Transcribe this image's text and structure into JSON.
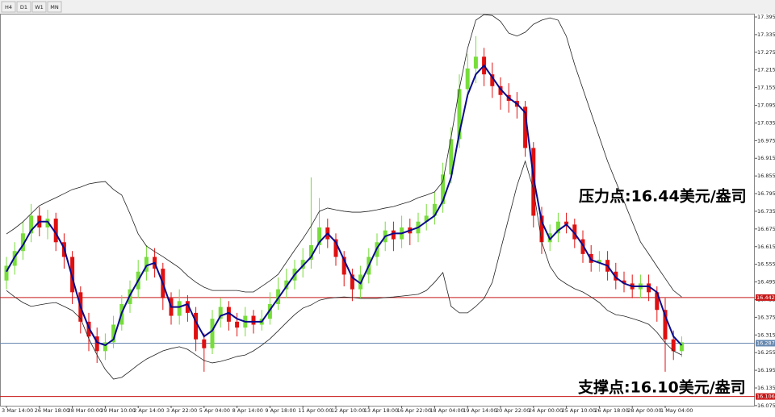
{
  "toolbar": [
    "H4",
    "D1",
    "W1",
    "MN"
  ],
  "chart_data": {
    "type": "candlestick",
    "categories": [
      "3 Mar 14:00",
      null,
      null,
      null,
      "26 Mar 18:00",
      null,
      null,
      null,
      "28 Mar 00:00",
      null,
      null,
      null,
      "29 Mar 10:00",
      null,
      null,
      null,
      "2 Apr 14:00",
      null,
      null,
      null,
      "3 Apr 22:00",
      null,
      null,
      null,
      "5 Apr 04:00",
      null,
      null,
      null,
      "8 Apr 14:00",
      null,
      null,
      null,
      "9 Apr 18:00",
      null,
      null,
      null,
      "11 Apr 00:00",
      null,
      null,
      null,
      "12 Apr 10:00",
      null,
      null,
      null,
      "13 Apr 18:00",
      null,
      null,
      null,
      "16 Apr 22:00",
      null,
      null,
      null,
      "18 Apr 04:00",
      null,
      null,
      null,
      "19 Apr 14:00",
      null,
      null,
      null,
      "20 Apr 22:00",
      null,
      null,
      null,
      "24 Apr 00:00",
      null,
      null,
      null,
      "25 Apr 10:00",
      null,
      null,
      null,
      "26 Apr 18:00",
      null,
      null,
      null,
      "28 Apr 00:00",
      null,
      null,
      null,
      "1 May 04:00",
      null,
      null
    ],
    "open": [
      16.5,
      16.55,
      16.6,
      16.66,
      16.72,
      16.68,
      16.71,
      16.63,
      16.58,
      16.46,
      16.36,
      16.31,
      16.26,
      16.29,
      16.35,
      16.42,
      16.47,
      16.53,
      16.58,
      16.54,
      16.44,
      16.38,
      16.43,
      16.39,
      16.3,
      16.27,
      16.37,
      16.41,
      16.36,
      16.34,
      16.38,
      16.35,
      16.37,
      16.42,
      16.47,
      16.5,
      16.54,
      16.57,
      16.62,
      16.68,
      16.64,
      16.58,
      16.52,
      16.47,
      16.52,
      16.58,
      16.63,
      16.67,
      16.64,
      16.68,
      16.66,
      16.7,
      16.72,
      16.76,
      16.86,
      16.98,
      17.15,
      17.22,
      17.26,
      17.2,
      17.16,
      17.13,
      17.11,
      17.09,
      16.95,
      16.72,
      16.63,
      16.66,
      16.7,
      16.69,
      16.64,
      16.59,
      16.56,
      16.57,
      16.53,
      16.5,
      16.49,
      16.47,
      16.49,
      16.46,
      16.4,
      16.3,
      16.26
    ],
    "high": [
      16.58,
      16.63,
      16.7,
      16.76,
      16.75,
      16.74,
      16.73,
      16.66,
      16.6,
      16.48,
      16.39,
      16.34,
      16.32,
      16.38,
      16.45,
      16.5,
      16.57,
      16.62,
      16.61,
      16.56,
      16.46,
      16.47,
      16.45,
      16.41,
      16.32,
      16.4,
      16.44,
      16.43,
      16.39,
      16.41,
      16.4,
      16.4,
      16.46,
      16.51,
      16.54,
      16.57,
      16.61,
      16.85,
      16.78,
      16.71,
      16.66,
      16.6,
      16.54,
      16.55,
      16.61,
      16.66,
      16.7,
      16.7,
      16.72,
      16.71,
      16.73,
      16.76,
      16.8,
      16.9,
      17.02,
      17.2,
      17.27,
      17.33,
      17.29,
      17.24,
      17.19,
      17.17,
      17.14,
      17.11,
      16.97,
      16.75,
      16.69,
      16.73,
      16.73,
      16.71,
      16.67,
      16.62,
      16.6,
      16.6,
      16.56,
      16.53,
      16.52,
      16.52,
      16.52,
      16.48,
      16.44,
      16.33,
      16.31
    ],
    "low": [
      16.47,
      16.52,
      16.57,
      16.63,
      16.65,
      16.64,
      16.6,
      16.54,
      16.42,
      16.32,
      16.26,
      16.22,
      16.23,
      16.27,
      16.33,
      16.39,
      16.44,
      16.5,
      16.51,
      16.4,
      16.35,
      16.35,
      16.36,
      16.26,
      16.19,
      16.25,
      16.34,
      16.33,
      16.31,
      16.31,
      16.32,
      16.33,
      16.35,
      16.4,
      16.44,
      16.47,
      16.51,
      16.54,
      16.59,
      16.61,
      16.55,
      16.48,
      16.43,
      16.44,
      16.49,
      16.55,
      16.6,
      16.6,
      16.61,
      16.62,
      16.63,
      16.67,
      16.69,
      16.73,
      16.83,
      16.95,
      17.12,
      17.17,
      17.16,
      17.12,
      17.08,
      17.07,
      17.05,
      16.92,
      16.68,
      16.59,
      16.6,
      16.63,
      16.66,
      16.61,
      16.56,
      16.53,
      16.53,
      16.5,
      16.47,
      16.46,
      16.44,
      16.44,
      16.43,
      16.36,
      16.19,
      16.23,
      16.24
    ],
    "close": [
      16.55,
      16.6,
      16.66,
      16.72,
      16.68,
      16.71,
      16.63,
      16.58,
      16.46,
      16.36,
      16.31,
      16.26,
      16.29,
      16.35,
      16.42,
      16.47,
      16.53,
      16.58,
      16.54,
      16.44,
      16.38,
      16.43,
      16.39,
      16.3,
      16.27,
      16.37,
      16.41,
      16.36,
      16.34,
      16.38,
      16.35,
      16.37,
      16.42,
      16.47,
      16.5,
      16.54,
      16.57,
      16.62,
      16.68,
      16.64,
      16.58,
      16.52,
      16.47,
      16.52,
      16.58,
      16.63,
      16.67,
      16.64,
      16.68,
      16.66,
      16.7,
      16.72,
      16.76,
      16.86,
      16.98,
      17.15,
      17.22,
      17.26,
      17.2,
      17.16,
      17.13,
      17.11,
      17.09,
      16.95,
      16.72,
      16.63,
      16.66,
      16.7,
      16.69,
      16.64,
      16.59,
      16.56,
      16.57,
      16.53,
      16.5,
      16.49,
      16.47,
      16.49,
      16.46,
      16.4,
      16.3,
      16.26,
      16.29
    ],
    "up_color": "#77dd3a",
    "down_color": "#e01010",
    "series": [
      {
        "color": "#222222",
        "values": [
          16.658,
          16.677,
          16.699,
          16.727,
          16.754,
          16.768,
          16.781,
          16.795,
          16.809,
          16.817,
          16.828,
          16.833,
          16.836,
          16.809,
          16.79,
          16.727,
          16.658,
          16.617,
          16.598,
          16.581,
          16.562,
          16.543,
          16.516,
          16.494,
          16.477,
          16.466,
          16.466,
          16.466,
          16.466,
          16.461,
          16.461,
          16.48,
          16.499,
          16.521,
          16.562,
          16.603,
          16.642,
          16.685,
          16.735,
          16.746,
          16.74,
          16.735,
          16.732,
          16.732,
          16.735,
          16.74,
          16.746,
          16.751,
          16.76,
          16.768,
          16.781,
          16.79,
          16.801,
          16.836,
          16.987,
          17.151,
          17.288,
          17.384,
          17.403,
          17.4,
          17.38,
          17.34,
          17.33,
          17.343,
          17.37,
          17.384,
          17.392,
          17.384,
          17.329,
          17.233,
          17.151,
          17.069,
          16.987,
          16.905,
          16.836,
          16.768,
          16.699,
          16.631,
          16.59,
          16.548,
          16.507,
          16.466,
          16.444
        ]
      },
      {
        "color": "#222222",
        "values": [
          16.466,
          16.444,
          16.425,
          16.412,
          16.417,
          16.422,
          16.425,
          16.412,
          16.398,
          16.371,
          16.302,
          16.247,
          16.198,
          16.165,
          16.171,
          16.192,
          16.214,
          16.233,
          16.247,
          16.261,
          16.269,
          16.275,
          16.266,
          16.247,
          16.228,
          16.22,
          16.225,
          16.233,
          16.242,
          16.247,
          16.261,
          16.28,
          16.302,
          16.329,
          16.357,
          16.384,
          16.406,
          16.417,
          16.433,
          16.439,
          16.442,
          16.444,
          16.442,
          16.439,
          16.439,
          16.439,
          16.442,
          16.444,
          16.447,
          16.45,
          16.453,
          16.466,
          16.494,
          16.527,
          16.412,
          16.39,
          16.39,
          16.412,
          16.439,
          16.494,
          16.603,
          16.713,
          16.822,
          16.905,
          16.809,
          16.631,
          16.548,
          16.507,
          16.488,
          16.472,
          16.461,
          16.444,
          16.425,
          16.398,
          16.384,
          16.379,
          16.371,
          16.362,
          16.351,
          16.324,
          16.288,
          16.261,
          16.247
        ]
      },
      {
        "color": "#0a0a8c",
        "values": [
          16.53,
          16.58,
          16.62,
          16.67,
          16.7,
          16.7,
          16.66,
          16.61,
          16.51,
          16.41,
          16.34,
          16.29,
          16.28,
          16.3,
          16.39,
          16.45,
          16.5,
          16.55,
          16.56,
          16.49,
          16.41,
          16.41,
          16.42,
          16.36,
          16.31,
          16.33,
          16.38,
          16.39,
          16.37,
          16.36,
          16.36,
          16.36,
          16.4,
          16.44,
          16.48,
          16.52,
          16.55,
          16.58,
          16.63,
          16.66,
          16.63,
          16.57,
          16.51,
          16.49,
          16.55,
          16.61,
          16.65,
          16.66,
          16.66,
          16.67,
          16.68,
          16.7,
          16.72,
          16.77,
          16.85,
          17.0,
          17.13,
          17.2,
          17.23,
          17.19,
          17.15,
          17.12,
          17.1,
          17.07,
          16.85,
          16.7,
          16.64,
          16.67,
          16.69,
          16.66,
          16.62,
          16.57,
          16.56,
          16.55,
          16.51,
          16.49,
          16.48,
          16.48,
          16.48,
          16.46,
          16.38,
          16.31,
          16.28
        ]
      }
    ],
    "hlines": [
      16.442,
      16.287,
      16.106
    ],
    "hline_colors": [
      "#c81818",
      "#6688b0",
      "#c81818"
    ],
    "annotations": [
      "压力点:16.44美元/盎司",
      "支撑点:16.10美元/盎司"
    ],
    "ylim": [
      16.061,
      17.406
    ],
    "yticks": [
      17.395,
      17.335,
      17.275,
      17.215,
      17.155,
      17.095,
      17.035,
      16.975,
      16.915,
      16.855,
      16.795,
      16.735,
      16.675,
      16.615,
      16.555,
      16.495,
      16.435,
      16.375,
      16.315,
      16.255,
      16.195,
      16.135,
      16.075
    ]
  }
}
